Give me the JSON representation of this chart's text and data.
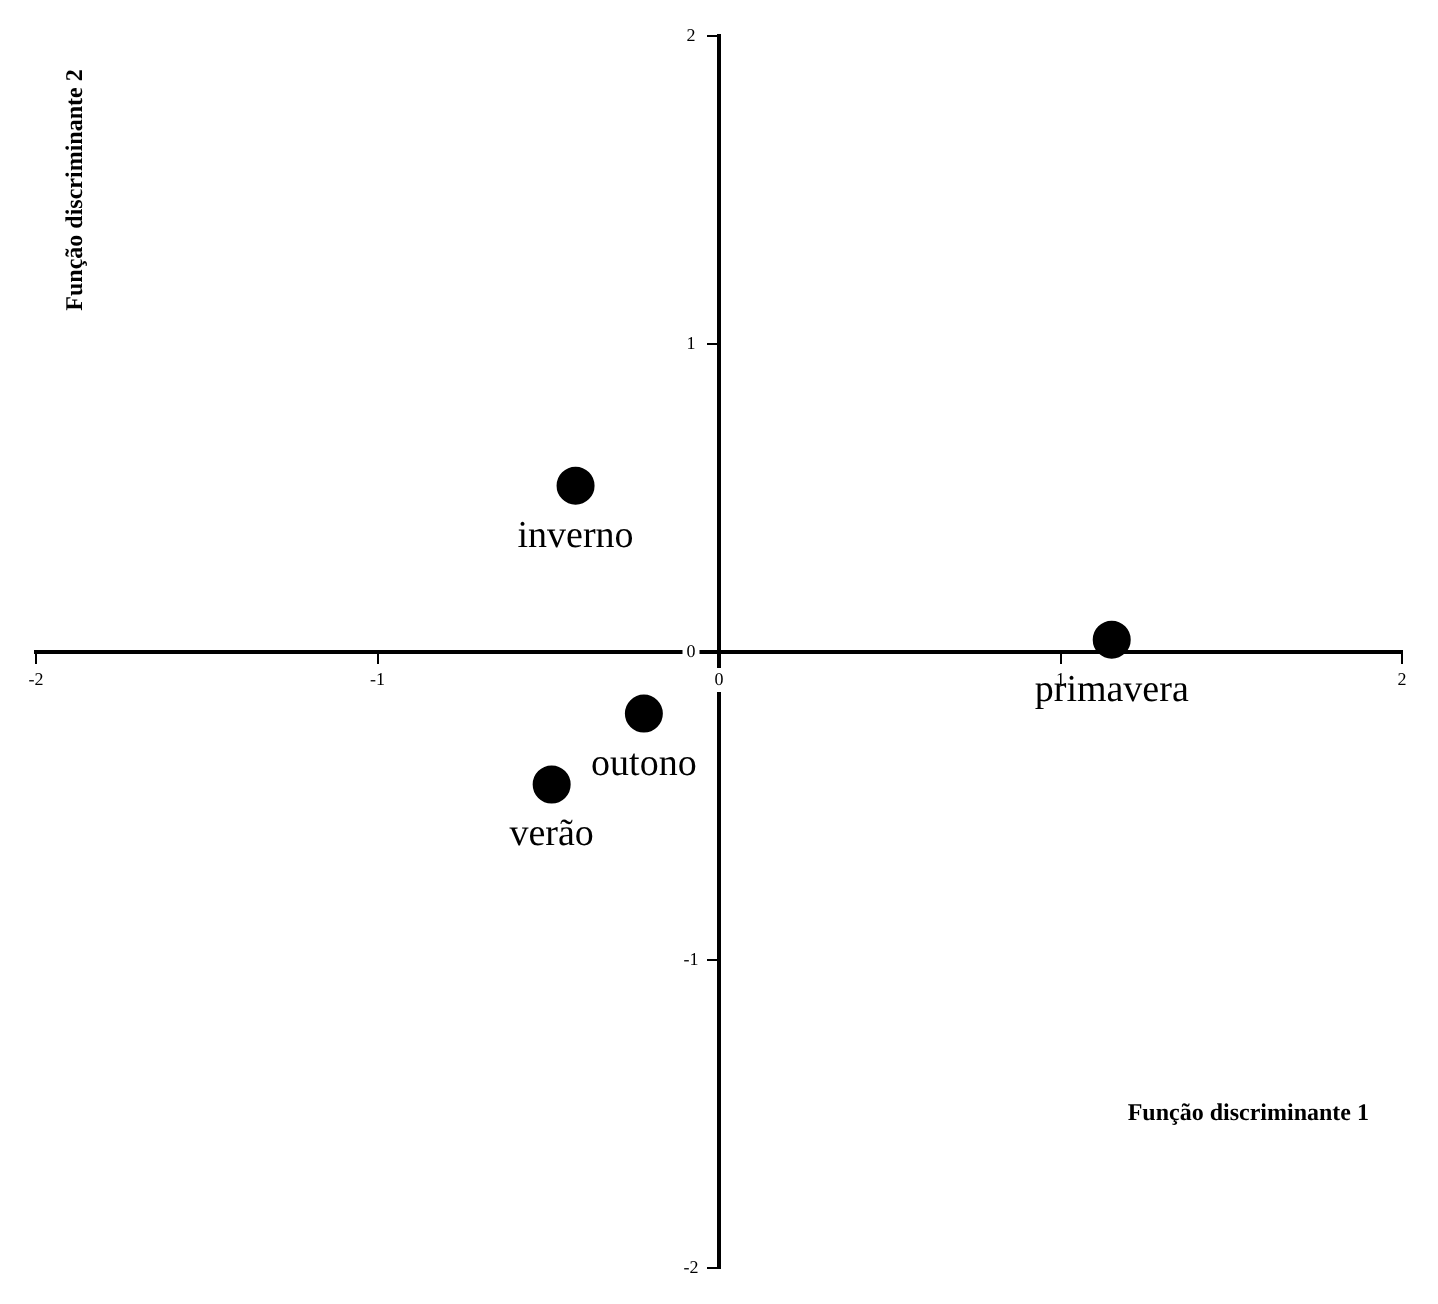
{
  "chart_data": {
    "type": "scatter",
    "xlabel": "Função discriminante 1",
    "ylabel": "Função discriminante 2",
    "xlim": [
      -2,
      2
    ],
    "ylim": [
      -2,
      2
    ],
    "xticks": [
      -2,
      -1,
      0,
      1,
      2
    ],
    "yticks": [
      -2,
      -1,
      0,
      1,
      2
    ],
    "grid": false,
    "legend": false,
    "marker": "circle",
    "series": [
      {
        "name": "inverno",
        "color": "#000000",
        "x": [
          -0.42
        ],
        "values": [
          0.54
        ]
      },
      {
        "name": "primavera",
        "color": "#000000",
        "x": [
          1.15
        ],
        "values": [
          0.04
        ]
      },
      {
        "name": "outono",
        "color": "#000000",
        "x": [
          -0.22
        ],
        "values": [
          -0.2
        ]
      },
      {
        "name": "verão",
        "color": "#000000",
        "x": [
          -0.49
        ],
        "values": [
          -0.43
        ]
      }
    ]
  }
}
